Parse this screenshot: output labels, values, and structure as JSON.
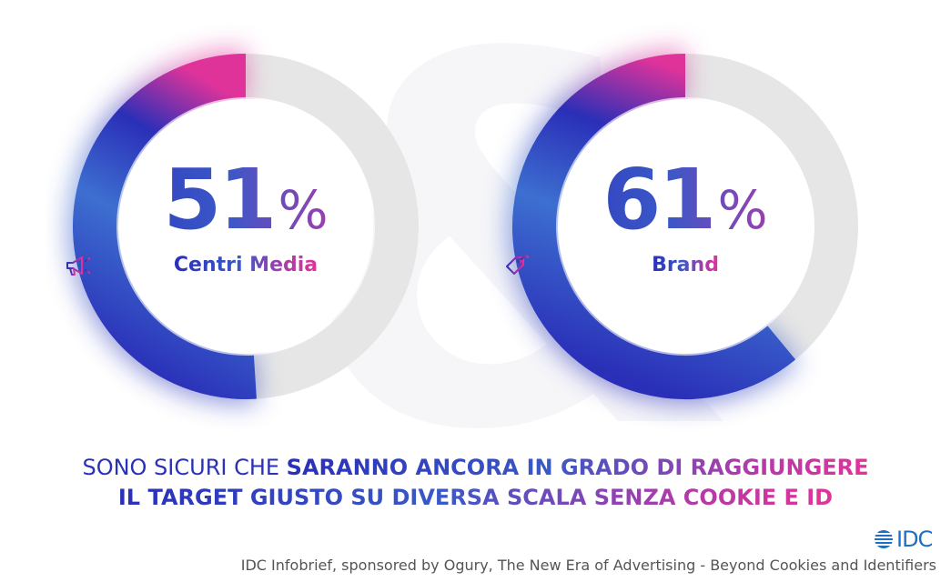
{
  "colors": {
    "track": "#e6e6e6",
    "gradient_blue": "#2a2fb8",
    "gradient_mid": "#3d6fd0",
    "gradient_pink": "#e0339a",
    "idc_blue": "#1f6fc1"
  },
  "chart_data": [
    {
      "type": "donut",
      "value": 51,
      "remainder": 49,
      "value_label": "51",
      "unit": "%",
      "label": "Centri Media",
      "icon": "megaphone-icon"
    },
    {
      "type": "donut",
      "value": 61,
      "remainder": 39,
      "value_label": "61",
      "unit": "%",
      "label": "Brand",
      "icon": "price-tag-icon"
    }
  ],
  "headline": {
    "line1_light": "SONO SICURI CHE ",
    "line1_bold": "SARANNO ANCORA IN GRADO DI RAGGIUNGERE",
    "line2_bold": "IL TARGET GIUSTO SU DIVERSA SCALA SENZA COOKIE E ID"
  },
  "logo": {
    "text": "IDC"
  },
  "source": "IDC Infobrief, sponsored by Ogury, The New Era of Advertising - Beyond Cookies and Identifiers"
}
